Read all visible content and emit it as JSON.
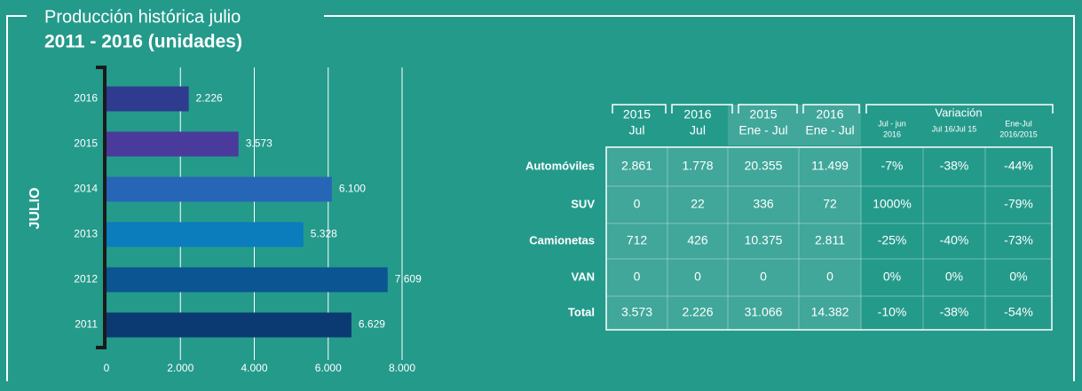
{
  "chart_data": {
    "type": "hbar",
    "title": "Producción histórica julio",
    "subtitle": "2011 - 2016 (unidades)",
    "ylabel": "JULIO",
    "categories": [
      "2016",
      "2015",
      "2014",
      "2013",
      "2012",
      "2011"
    ],
    "values": [
      2226,
      3573,
      6100,
      5328,
      7609,
      6629
    ],
    "value_labels": [
      "2.226",
      "3.573",
      "6.100",
      "5.328",
      "7.609",
      "6.629"
    ],
    "colors": [
      "#2e3b8e",
      "#4a3a9c",
      "#2766b6",
      "#0b7cbc",
      "#0a5592",
      "#0b3a72"
    ],
    "xlim": [
      0,
      8000
    ],
    "xticks": [
      0,
      {
        "value": 2000,
        "label": "2.000"
      },
      {
        "value": 4000,
        "label": "4.000"
      },
      {
        "value": 6000,
        "label": "6.000"
      },
      {
        "value": 8000,
        "label": "8.000"
      }
    ],
    "grid": true
  },
  "table": {
    "group": "Variación",
    "columns": [
      [
        "2015",
        "Jul"
      ],
      [
        "2016",
        "Jul"
      ],
      [
        "2015",
        "Ene - Jul"
      ],
      [
        "2016",
        "Ene - Jul"
      ],
      [
        "Jul - jun",
        "2016"
      ],
      [
        "Jul 16/Jul 15"
      ],
      [
        "Ene-Jul",
        "2016/2015"
      ]
    ],
    "rows": [
      [
        "Automóviles",
        "2.861",
        "1.778",
        "20.355",
        "11.499",
        "-7%",
        "-38%",
        "-44%"
      ],
      [
        "SUV",
        "0",
        "22",
        "336",
        "72",
        "1000%",
        null,
        "-79%"
      ],
      [
        "Camionetas",
        "712",
        "426",
        "10.375",
        "2.811",
        "-25%",
        "-40%",
        "-73%"
      ],
      [
        "VAN",
        "0",
        "0",
        "0",
        "0",
        "0%",
        "0%",
        "0%"
      ],
      [
        "Total",
        "3.573",
        "2.226",
        "31.066",
        "14.382",
        "-10%",
        "-38%",
        "-54%"
      ]
    ]
  }
}
